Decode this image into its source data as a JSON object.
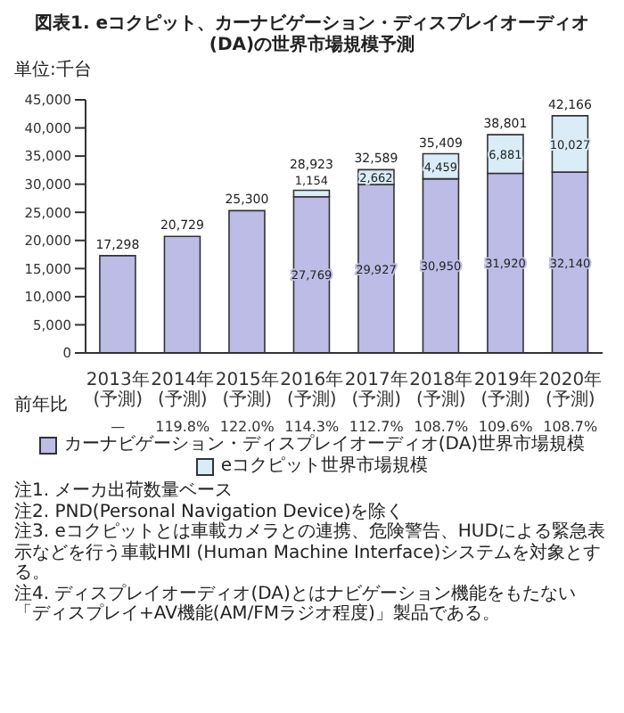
{
  "chart_data": {
    "type": "bar",
    "title": "図表1.  eコクピット、カーナビゲーション・ディスプレイオーディオ(DA)の世界市場規模予測",
    "ylabel": "単位:千台",
    "categories": [
      "2013年\n(予測)",
      "2014年\n(予測)",
      "2015年\n(予測)",
      "2016年\n(予測)",
      "2017年\n(予測)",
      "2018年\n(予測)",
      "2019年\n(予測)",
      "2020年\n(予測)"
    ],
    "series": [
      {
        "name": "カーナビゲーション・ディスプレイオーディオ(DA)世界市場規模",
        "color": "#bcbce6",
        "values": [
          17298,
          20729,
          25300,
          27769,
          29927,
          30950,
          31920,
          32140
        ],
        "value_labels": [
          null,
          null,
          null,
          "27,769",
          "29,927",
          "30,950",
          "31,920",
          "32,140"
        ]
      },
      {
        "name": "eコクピット世界市場規模",
        "color": "#d9ecf8",
        "values": [
          0,
          0,
          0,
          1154,
          2662,
          4459,
          6881,
          10027
        ],
        "value_labels": [
          null,
          null,
          null,
          "1,154",
          "2,662",
          "4,459",
          "6,881",
          "10,027"
        ]
      }
    ],
    "stacked": true,
    "totals": [
      "17,298",
      "20,729",
      "25,300",
      "28,923",
      "32,589",
      "35,409",
      "38,801",
      "42,166"
    ],
    "ylim": [
      0,
      45000
    ],
    "yticks": [
      0,
      {
        "value": 5000,
        "label": "5,000"
      },
      {
        "value": 10000,
        "label": "10,000"
      },
      {
        "value": 15000,
        "label": "15,000"
      },
      {
        "value": 20000,
        "label": "20,000"
      },
      {
        "value": 25000,
        "label": "25,000"
      },
      {
        "value": 30000,
        "label": "30,000"
      },
      {
        "value": 35000,
        "label": "35,000"
      },
      {
        "value": 40000,
        "label": "40,000"
      },
      {
        "value": 45000,
        "label": "45,000"
      }
    ],
    "grid": false,
    "legend": "bottom",
    "annotations": [
      "前年比",
      "—",
      "119.8%",
      "122.0%",
      "114.3%",
      "112.7%",
      "108.7%",
      "109.6%",
      "108.7%",
      "注1. メーカ出荷数量ベース",
      "注2. PND(Personal Navigation Device)を除く",
      "注3. eコクピットとは車載カメラとの連携、危険警告、HUDによる緊急表示などを行う車載HMI (Human Machine Interface)システムを対象とする。",
      "注4. ディスプレイオーディオ(DA)とはナビゲーション機能をもたない「ディスプレイ+AV機能(AM/FMラジオ程度)」製品である。"
    ]
  }
}
